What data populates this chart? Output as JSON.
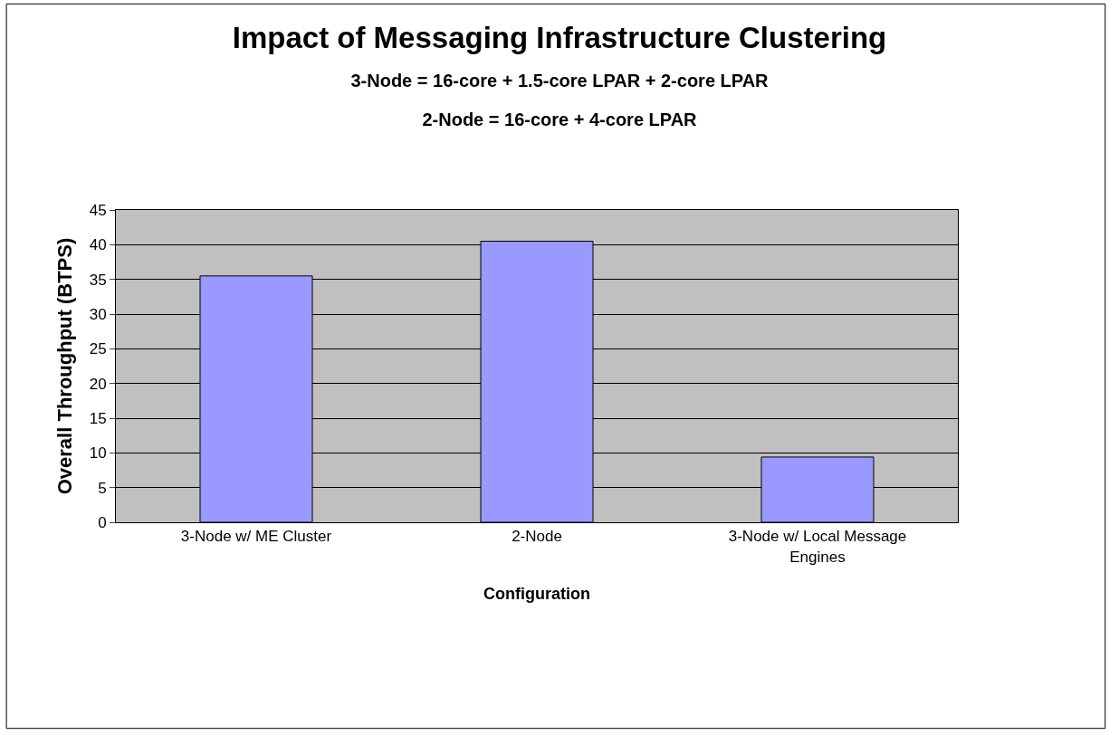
{
  "chart_data": {
    "type": "bar",
    "title": "Impact of Messaging Infrastructure Clustering",
    "subtitle": "3-Node = 16-core + 1.5-core LPAR + 2-core LPAR\n2-Node = 16-core + 4-core LPAR",
    "xlabel": "Configuration",
    "ylabel": "Overall Throughput (BTPS)",
    "categories": [
      "3-Node w/ ME Cluster",
      "2-Node",
      "3-Node w/ Local Message Engines"
    ],
    "values": [
      35.5,
      40.5,
      9.4
    ],
    "color": "#9999ff",
    "ylim": [
      0,
      45
    ],
    "yticks": [
      0,
      5,
      10,
      15,
      20,
      25,
      30,
      35,
      40,
      45
    ],
    "grid": "y"
  }
}
